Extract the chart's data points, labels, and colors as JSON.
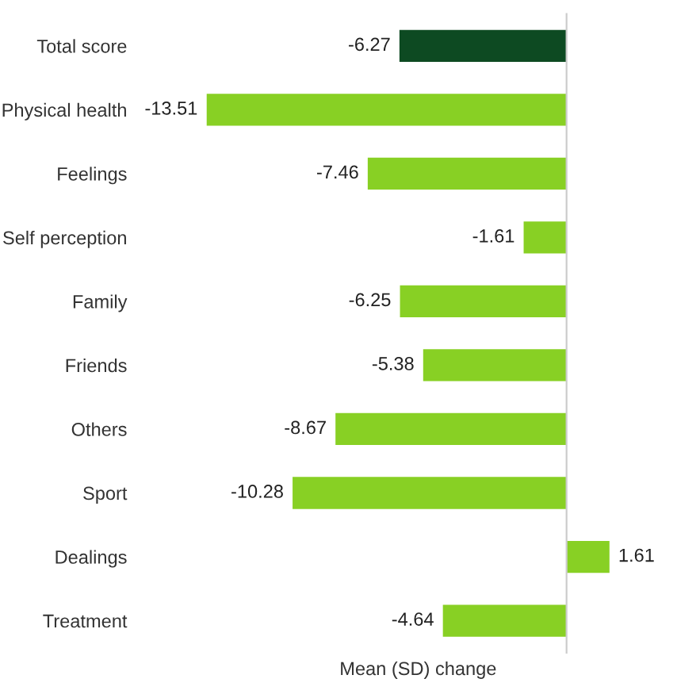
{
  "chart_data": {
    "type": "bar",
    "orientation": "horizontal",
    "xlabel": "Mean (SD) change",
    "categories": [
      "Total score",
      "Physical health",
      "Feelings",
      "Self perception",
      "Family",
      "Friends",
      "Others",
      "Sport",
      "Dealings",
      "Treatment"
    ],
    "values": [
      -6.27,
      -13.51,
      -7.46,
      -1.61,
      -6.25,
      -5.38,
      -8.67,
      -10.28,
      1.61,
      -4.64
    ],
    "colors": [
      "#0d4a22",
      "#88d024",
      "#88d024",
      "#88d024",
      "#88d024",
      "#88d024",
      "#88d024",
      "#88d024",
      "#88d024",
      "#88d024"
    ],
    "data_labels": true,
    "grid": false,
    "legend": false
  }
}
